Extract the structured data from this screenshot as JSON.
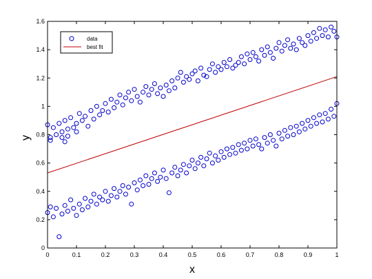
{
  "chart_data": {
    "type": "scatter",
    "xlabel": "x",
    "ylabel": "y",
    "xlim": [
      0,
      1
    ],
    "ylim": [
      0,
      1.6
    ],
    "xticks": [
      "0",
      "0.1",
      "0.2",
      "0.3",
      "0.4",
      "0.5",
      "0.6",
      "0.7",
      "0.8",
      "0.9",
      "1"
    ],
    "yticks": [
      "0",
      "0.2",
      "0.4",
      "0.6",
      "0.8",
      "1",
      "1.2",
      "1.4",
      "1.6"
    ],
    "legend_position": "top-left",
    "grid": false,
    "colors": {
      "data": "#0000cc",
      "fit": "#c00000"
    },
    "series": [
      {
        "name": "data",
        "marker": "circle",
        "points": [
          [
            0.0,
            0.87
          ],
          [
            0.01,
            0.78
          ],
          [
            0.01,
            0.76
          ],
          [
            0.02,
            0.85
          ],
          [
            0.03,
            0.8
          ],
          [
            0.04,
            0.88
          ],
          [
            0.05,
            0.82
          ],
          [
            0.05,
            0.78
          ],
          [
            0.06,
            0.75
          ],
          [
            0.06,
            0.9
          ],
          [
            0.07,
            0.84
          ],
          [
            0.07,
            0.79
          ],
          [
            0.08,
            0.92
          ],
          [
            0.09,
            0.85
          ],
          [
            0.1,
            0.88
          ],
          [
            0.1,
            0.82
          ],
          [
            0.11,
            0.95
          ],
          [
            0.12,
            0.9
          ],
          [
            0.13,
            0.93
          ],
          [
            0.14,
            0.86
          ],
          [
            0.15,
            0.97
          ],
          [
            0.16,
            0.91
          ],
          [
            0.17,
            1.0
          ],
          [
            0.18,
            0.94
          ],
          [
            0.19,
            0.97
          ],
          [
            0.2,
            1.02
          ],
          [
            0.21,
            0.96
          ],
          [
            0.22,
            1.05
          ],
          [
            0.23,
            0.99
          ],
          [
            0.24,
            1.03
          ],
          [
            0.25,
            1.08
          ],
          [
            0.26,
            1.01
          ],
          [
            0.27,
            1.06
          ],
          [
            0.28,
            1.1
          ],
          [
            0.29,
            1.04
          ],
          [
            0.3,
            1.12
          ],
          [
            0.31,
            1.07
          ],
          [
            0.32,
            1.03
          ],
          [
            0.33,
            1.1
          ],
          [
            0.34,
            1.14
          ],
          [
            0.35,
            1.08
          ],
          [
            0.36,
            1.12
          ],
          [
            0.37,
            1.16
          ],
          [
            0.38,
            1.09
          ],
          [
            0.39,
            1.13
          ],
          [
            0.4,
            1.07
          ],
          [
            0.41,
            1.15
          ],
          [
            0.42,
            1.11
          ],
          [
            0.43,
            1.18
          ],
          [
            0.44,
            1.13
          ],
          [
            0.45,
            1.2
          ],
          [
            0.46,
            1.24
          ],
          [
            0.47,
            1.17
          ],
          [
            0.48,
            1.21
          ],
          [
            0.49,
            1.19
          ],
          [
            0.5,
            1.23
          ],
          [
            0.51,
            1.25
          ],
          [
            0.52,
            1.18
          ],
          [
            0.53,
            1.27
          ],
          [
            0.54,
            1.22
          ],
          [
            0.55,
            1.21
          ],
          [
            0.56,
            1.26
          ],
          [
            0.57,
            1.3
          ],
          [
            0.58,
            1.24
          ],
          [
            0.59,
            1.28
          ],
          [
            0.6,
            1.26
          ],
          [
            0.61,
            1.31
          ],
          [
            0.62,
            1.28
          ],
          [
            0.63,
            1.33
          ],
          [
            0.64,
            1.27
          ],
          [
            0.65,
            1.29
          ],
          [
            0.66,
            1.31
          ],
          [
            0.67,
            1.35
          ],
          [
            0.68,
            1.3
          ],
          [
            0.69,
            1.37
          ],
          [
            0.7,
            1.33
          ],
          [
            0.71,
            1.38
          ],
          [
            0.72,
            1.35
          ],
          [
            0.73,
            1.32
          ],
          [
            0.74,
            1.4
          ],
          [
            0.75,
            1.36
          ],
          [
            0.76,
            1.42
          ],
          [
            0.77,
            1.38
          ],
          [
            0.78,
            1.34
          ],
          [
            0.79,
            1.41
          ],
          [
            0.8,
            1.45
          ],
          [
            0.81,
            1.39
          ],
          [
            0.82,
            1.43
          ],
          [
            0.83,
            1.47
          ],
          [
            0.84,
            1.41
          ],
          [
            0.85,
            1.44
          ],
          [
            0.86,
            1.4
          ],
          [
            0.87,
            1.48
          ],
          [
            0.88,
            1.45
          ],
          [
            0.89,
            1.43
          ],
          [
            0.9,
            1.5
          ],
          [
            0.91,
            1.46
          ],
          [
            0.92,
            1.52
          ],
          [
            0.93,
            1.48
          ],
          [
            0.94,
            1.55
          ],
          [
            0.95,
            1.5
          ],
          [
            0.96,
            1.54
          ],
          [
            0.97,
            1.49
          ],
          [
            0.98,
            1.56
          ],
          [
            0.99,
            1.53
          ],
          [
            1.0,
            1.49
          ],
          [
            0.0,
            0.25
          ],
          [
            0.01,
            0.29
          ],
          [
            0.02,
            0.22
          ],
          [
            0.03,
            0.28
          ],
          [
            0.04,
            0.08
          ],
          [
            0.05,
            0.24
          ],
          [
            0.06,
            0.3
          ],
          [
            0.07,
            0.26
          ],
          [
            0.08,
            0.34
          ],
          [
            0.09,
            0.28
          ],
          [
            0.1,
            0.23
          ],
          [
            0.11,
            0.31
          ],
          [
            0.12,
            0.27
          ],
          [
            0.13,
            0.35
          ],
          [
            0.14,
            0.29
          ],
          [
            0.15,
            0.33
          ],
          [
            0.16,
            0.38
          ],
          [
            0.17,
            0.31
          ],
          [
            0.18,
            0.36
          ],
          [
            0.19,
            0.34
          ],
          [
            0.2,
            0.4
          ],
          [
            0.21,
            0.33
          ],
          [
            0.22,
            0.37
          ],
          [
            0.23,
            0.42
          ],
          [
            0.24,
            0.36
          ],
          [
            0.25,
            0.4
          ],
          [
            0.26,
            0.44
          ],
          [
            0.27,
            0.38
          ],
          [
            0.28,
            0.43
          ],
          [
            0.29,
            0.31
          ],
          [
            0.3,
            0.46
          ],
          [
            0.31,
            0.41
          ],
          [
            0.32,
            0.48
          ],
          [
            0.33,
            0.44
          ],
          [
            0.34,
            0.51
          ],
          [
            0.35,
            0.45
          ],
          [
            0.36,
            0.49
          ],
          [
            0.37,
            0.53
          ],
          [
            0.38,
            0.47
          ],
          [
            0.39,
            0.5
          ],
          [
            0.4,
            0.55
          ],
          [
            0.41,
            0.49
          ],
          [
            0.42,
            0.39
          ],
          [
            0.43,
            0.53
          ],
          [
            0.44,
            0.57
          ],
          [
            0.45,
            0.51
          ],
          [
            0.46,
            0.55
          ],
          [
            0.47,
            0.59
          ],
          [
            0.48,
            0.53
          ],
          [
            0.49,
            0.58
          ],
          [
            0.5,
            0.62
          ],
          [
            0.51,
            0.56
          ],
          [
            0.52,
            0.6
          ],
          [
            0.53,
            0.64
          ],
          [
            0.54,
            0.58
          ],
          [
            0.55,
            0.63
          ],
          [
            0.56,
            0.67
          ],
          [
            0.57,
            0.6
          ],
          [
            0.58,
            0.65
          ],
          [
            0.59,
            0.62
          ],
          [
            0.6,
            0.68
          ],
          [
            0.61,
            0.64
          ],
          [
            0.62,
            0.7
          ],
          [
            0.63,
            0.66
          ],
          [
            0.64,
            0.71
          ],
          [
            0.65,
            0.67
          ],
          [
            0.66,
            0.73
          ],
          [
            0.67,
            0.69
          ],
          [
            0.68,
            0.74
          ],
          [
            0.69,
            0.7
          ],
          [
            0.7,
            0.76
          ],
          [
            0.71,
            0.72
          ],
          [
            0.72,
            0.77
          ],
          [
            0.73,
            0.73
          ],
          [
            0.74,
            0.7
          ],
          [
            0.75,
            0.78
          ],
          [
            0.76,
            0.74
          ],
          [
            0.77,
            0.8
          ],
          [
            0.78,
            0.76
          ],
          [
            0.79,
            0.72
          ],
          [
            0.8,
            0.81
          ],
          [
            0.81,
            0.77
          ],
          [
            0.82,
            0.83
          ],
          [
            0.83,
            0.79
          ],
          [
            0.84,
            0.85
          ],
          [
            0.85,
            0.8
          ],
          [
            0.86,
            0.86
          ],
          [
            0.87,
            0.82
          ],
          [
            0.88,
            0.88
          ],
          [
            0.89,
            0.84
          ],
          [
            0.9,
            0.9
          ],
          [
            0.91,
            0.86
          ],
          [
            0.92,
            0.92
          ],
          [
            0.93,
            0.88
          ],
          [
            0.94,
            0.94
          ],
          [
            0.95,
            0.89
          ],
          [
            0.96,
            0.95
          ],
          [
            0.97,
            0.91
          ],
          [
            0.98,
            0.98
          ],
          [
            0.99,
            0.93
          ],
          [
            1.0,
            1.02
          ]
        ]
      },
      {
        "name": "best fit",
        "marker": "line",
        "points": [
          [
            0,
            0.53
          ],
          [
            1,
            1.21
          ]
        ]
      }
    ]
  }
}
